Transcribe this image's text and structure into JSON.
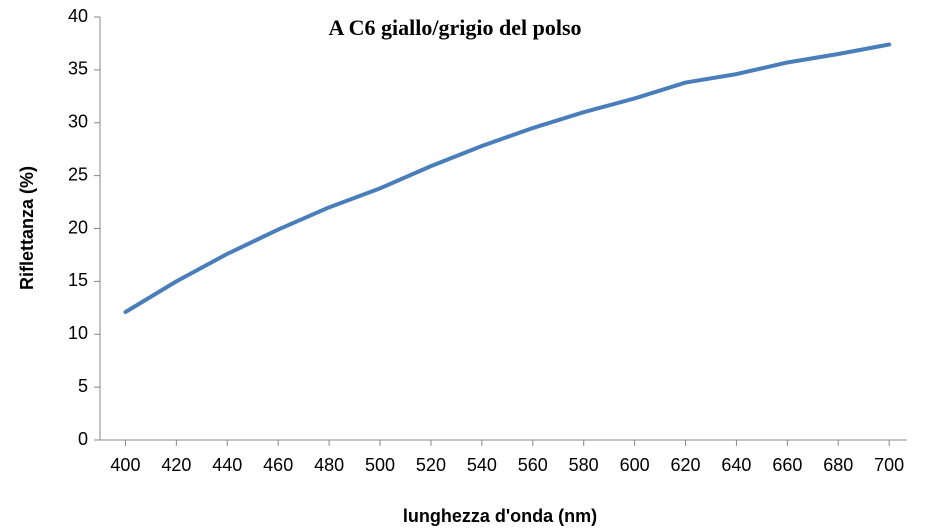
{
  "chart_data": {
    "type": "line",
    "title": "A C6 giallo/grigio del polso",
    "xlabel": "lunghezza d'onda (nm)",
    "ylabel": "Riflettanza (%)",
    "x": [
      400,
      420,
      440,
      460,
      480,
      500,
      520,
      540,
      560,
      580,
      600,
      620,
      640,
      660,
      680,
      700
    ],
    "series": [
      {
        "name": "A C6",
        "color": "#4a7ebb",
        "values": [
          12.1,
          15.0,
          17.6,
          19.9,
          22.0,
          23.8,
          25.9,
          27.8,
          29.5,
          31.0,
          32.3,
          33.8,
          34.6,
          35.7,
          36.5,
          37.4
        ]
      }
    ],
    "xlim": [
      390,
      707
    ],
    "xticks": [
      400,
      420,
      440,
      460,
      480,
      500,
      520,
      540,
      560,
      580,
      600,
      620,
      640,
      660,
      680,
      700
    ],
    "ylim": [
      0,
      40
    ],
    "yticks": [
      0,
      5,
      10,
      15,
      20,
      25,
      30,
      35,
      40
    ],
    "grid": false
  }
}
